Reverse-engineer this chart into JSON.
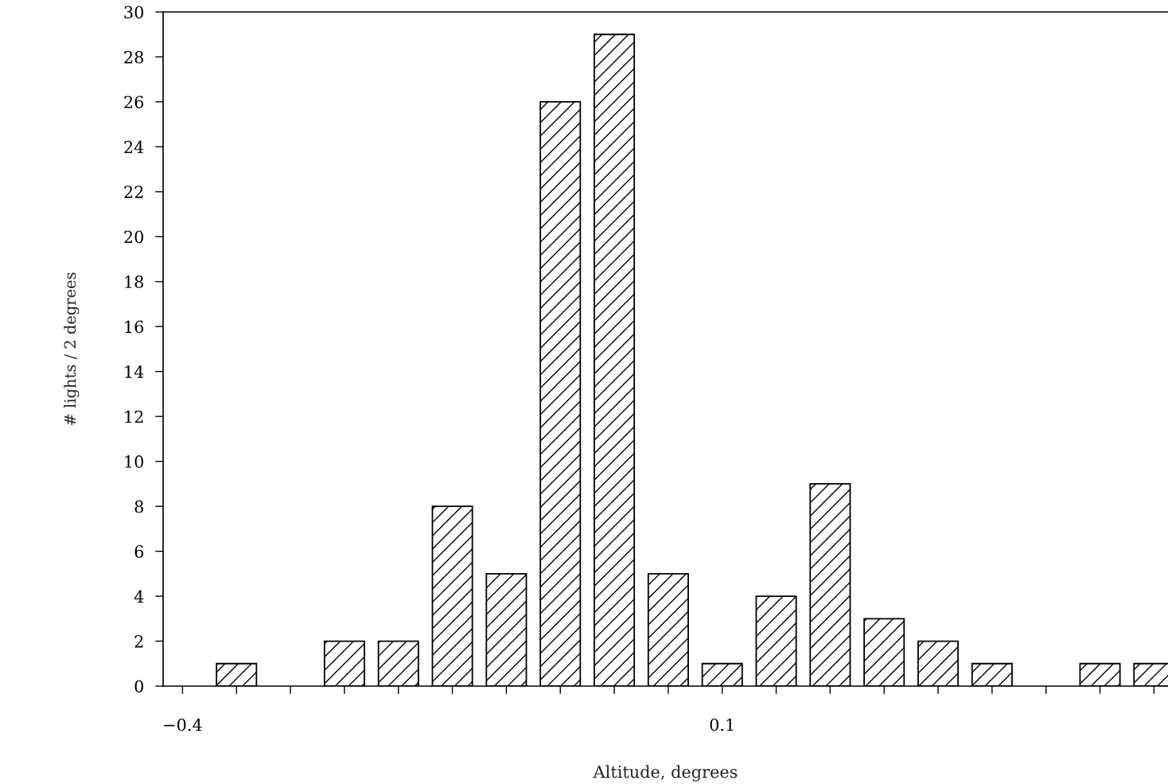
{
  "chart_data": {
    "type": "bar",
    "xlabel": "Altitude, degrees",
    "ylabel": "# lights / 2 degrees",
    "x": [
      -0.35,
      -0.25,
      -0.2,
      -0.15,
      -0.1,
      -0.05,
      0,
      0.05,
      0.1,
      0.15,
      0.2,
      0.25,
      0.3,
      0.35,
      0.45,
      0.5
    ],
    "values": [
      1,
      2,
      2,
      8,
      5,
      26,
      29,
      5,
      1,
      4,
      9,
      3,
      2,
      1,
      1,
      1
    ],
    "color": "#000000",
    "xlim": [
      -0.418,
      0.513
    ],
    "ylim": [
      0,
      30
    ],
    "xticks": [
      {
        "value": -0.4,
        "label": "−0.4"
      },
      {
        "value": -0.35,
        "label": null
      },
      {
        "value": -0.3,
        "label": null
      },
      {
        "value": -0.25,
        "label": null
      },
      {
        "value": -0.2,
        "label": null
      },
      {
        "value": -0.15,
        "label": null
      },
      {
        "value": -0.1,
        "label": null
      },
      {
        "value": -0.05,
        "label": null
      },
      {
        "value": 0,
        "label": null
      },
      {
        "value": 0.05,
        "label": null
      },
      {
        "value": 0.1,
        "label": "0.1"
      },
      {
        "value": 0.15,
        "label": null
      },
      {
        "value": 0.2,
        "label": null
      },
      {
        "value": 0.25,
        "label": null
      },
      {
        "value": 0.3,
        "label": null
      },
      {
        "value": 0.35,
        "label": null
      },
      {
        "value": 0.4,
        "label": null
      },
      {
        "value": 0.45,
        "label": null
      },
      {
        "value": 0.5,
        "label": null
      }
    ],
    "yticks": [
      0,
      2,
      4,
      6,
      8,
      10,
      12,
      14,
      16,
      18,
      20,
      22,
      24,
      26,
      28,
      30
    ],
    "grid": false
  }
}
